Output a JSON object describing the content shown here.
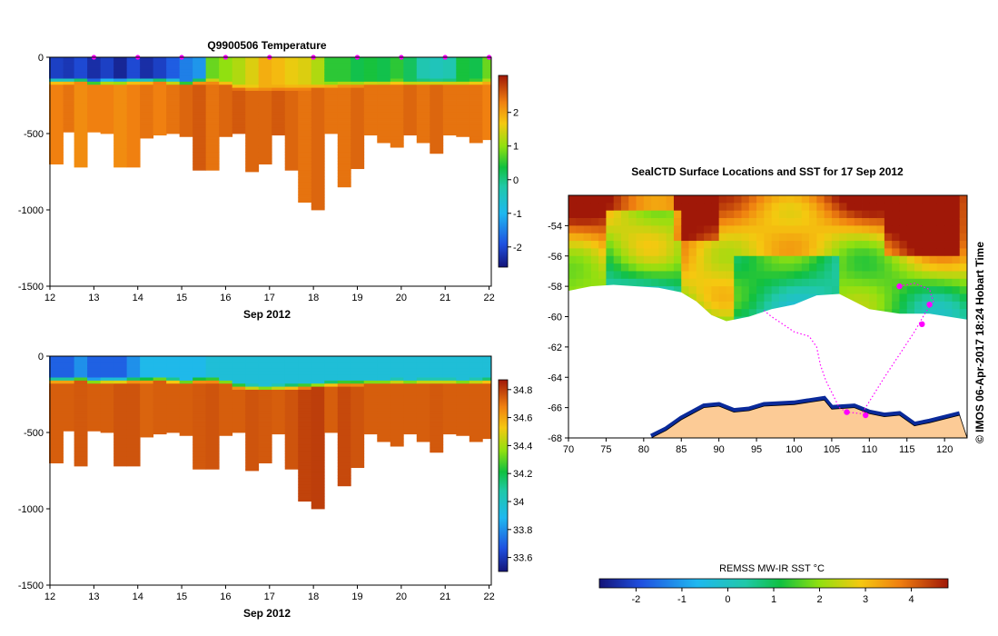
{
  "chart_data": [
    {
      "type": "heatmap",
      "title": "Q9900506  Temperature",
      "xlabel": "Sep 2012",
      "ylabel": "",
      "x_ticks": [
        "12",
        "13",
        "14",
        "15",
        "16",
        "17",
        "18",
        "19",
        "20",
        "21",
        "22"
      ],
      "xlim": [
        12,
        22.05
      ],
      "y_ticks": [
        0,
        -500,
        -1000,
        -1500
      ],
      "ylim": [
        -1500,
        0
      ],
      "colorbar_ticks": [
        2,
        1,
        0,
        -1,
        -2
      ],
      "colorbar_range": [
        -2.6,
        3.1
      ],
      "colors": {
        "cold": "#0a1a8a",
        "warm": "#e07010",
        "marker": "#ff00ff"
      },
      "profile_markers_x": [
        13,
        14,
        15,
        16,
        17,
        18,
        19,
        20,
        21,
        22
      ],
      "profiles_x": [
        12.2,
        12.4,
        12.7,
        13.0,
        13.3,
        13.6,
        13.9,
        14.2,
        14.5,
        14.8,
        15.1,
        15.4,
        15.7,
        16.0,
        16.3,
        16.6,
        16.9,
        17.2,
        17.5,
        17.8,
        18.1,
        18.4,
        18.7,
        19.0,
        19.3,
        19.6,
        19.9,
        20.2,
        20.5,
        20.8,
        21.1,
        21.4,
        21.7,
        22.0
      ],
      "max_depth_m": [
        700,
        490,
        720,
        490,
        500,
        720,
        720,
        530,
        510,
        500,
        520,
        740,
        740,
        520,
        500,
        750,
        700,
        510,
        740,
        950,
        1000,
        500,
        850,
        730,
        510,
        560,
        590,
        510,
        560,
        630,
        510,
        520,
        560,
        540
      ],
      "surface_temp_c": [
        -2.1,
        -2.2,
        -2.0,
        -2.3,
        -2.1,
        -2.4,
        -2.0,
        -2.3,
        -2.1,
        -1.8,
        -1.5,
        -1.3,
        0.8,
        1.0,
        1.2,
        1.5,
        1.9,
        1.8,
        1.6,
        1.5,
        1.2,
        0.5,
        0.5,
        0.3,
        0.4,
        0.3,
        0.5,
        0.2,
        -0.3,
        -0.4,
        -0.3,
        0.4,
        0.3,
        0.8
      ],
      "deep_temp_c": [
        2.3,
        2.4,
        2.2,
        2.3,
        2.3,
        2.2,
        2.3,
        2.4,
        2.3,
        2.4,
        2.5,
        2.6,
        2.4,
        2.5,
        2.6,
        2.5,
        2.5,
        2.6,
        2.5,
        2.4,
        2.5,
        2.4,
        2.4,
        2.5,
        2.4,
        2.4,
        2.4,
        2.5,
        2.4,
        2.5,
        2.4,
        2.4,
        2.4,
        2.3
      ],
      "mixed_layer_depth_m": [
        150,
        150,
        145,
        160,
        155,
        155,
        150,
        150,
        145,
        155,
        165,
        150,
        150,
        165,
        190,
        200,
        205,
        200,
        195,
        190,
        185,
        175,
        170,
        170,
        165,
        165,
        160,
        165,
        160,
        160,
        160,
        165,
        160,
        155
      ]
    },
    {
      "type": "heatmap",
      "title": "",
      "xlabel": "Sep 2012",
      "ylabel": "",
      "x_ticks": [
        "12",
        "13",
        "14",
        "15",
        "16",
        "17",
        "18",
        "19",
        "20",
        "21",
        "22"
      ],
      "xlim": [
        12,
        22.05
      ],
      "y_ticks": [
        0,
        -500,
        -1000,
        -1500
      ],
      "ylim": [
        -1500,
        0
      ],
      "colorbar_ticks": [
        "34.8",
        "34.6",
        "34.4",
        "34.2",
        "34",
        "33.8",
        "33.6"
      ],
      "colorbar_range": [
        33.5,
        34.87
      ],
      "surface_salinity": [
        33.7,
        33.7,
        33.8,
        33.7,
        33.7,
        33.7,
        33.8,
        33.9,
        33.9,
        33.9,
        33.9,
        33.9,
        33.95,
        33.95,
        33.95,
        33.95,
        33.95,
        33.95,
        33.95,
        33.95,
        33.95,
        33.95,
        33.95,
        33.95,
        33.95,
        33.95,
        33.95,
        33.95,
        33.95,
        33.95,
        33.95,
        33.95,
        33.95,
        33.95
      ],
      "deep_salinity": [
        34.74,
        34.74,
        34.75,
        34.74,
        34.74,
        34.76,
        34.76,
        34.73,
        34.74,
        34.74,
        34.74,
        34.75,
        34.76,
        34.74,
        34.74,
        34.76,
        34.75,
        34.74,
        34.76,
        34.79,
        34.8,
        34.74,
        34.78,
        34.76,
        34.74,
        34.74,
        34.74,
        34.74,
        34.74,
        34.75,
        34.74,
        34.74,
        34.74,
        34.74
      ]
    },
    {
      "type": "heatmap",
      "title": "SealCTD Surface Locations and SST for 17 Sep 2012",
      "xlabel": "",
      "ylabel": "",
      "x_ticks": [
        "70",
        "75",
        "80",
        "85",
        "90",
        "95",
        "100",
        "105",
        "110",
        "115",
        "120"
      ],
      "xlim": [
        70,
        123
      ],
      "y_ticks": [
        "-54",
        "-56",
        "-58",
        "-60",
        "-62",
        "-64",
        "-66",
        "-68"
      ],
      "ylim": [
        -68,
        -52
      ],
      "colorbar_label": "REMSS MW-IR SST °C",
      "colorbar_ticks": [
        "-2",
        "-1",
        "0",
        "1",
        "2",
        "3",
        "4"
      ],
      "colorbar_range": [
        -2.8,
        4.8
      ],
      "ice_edge_lat": [
        -58.3,
        -58.0,
        -57.9,
        -58.0,
        -58.1,
        -58.4,
        -59.0,
        -59.9,
        -60.3,
        -60.0,
        -59.5,
        -59.2,
        -58.6,
        -58.5,
        -59.5,
        -59.8,
        -59.8,
        -60.2
      ],
      "ice_edge_lon": [
        70,
        73,
        76,
        79,
        82,
        85,
        87,
        89,
        91,
        94,
        97,
        100,
        103,
        106,
        110,
        114,
        118,
        123
      ],
      "land_lat": [
        -68,
        -68,
        -67.5,
        -66.8,
        -66.0,
        -65.9,
        -66.3,
        -66.2,
        -65.9,
        -65.8,
        -65.5,
        -66.1,
        -66.0,
        -66.4,
        -66.6,
        -66.5,
        -67.2,
        -67.0,
        -66.5,
        -68
      ],
      "land_lon": [
        80,
        81,
        83,
        85,
        88,
        90,
        92,
        94,
        96,
        100,
        104,
        105,
        108,
        110,
        112,
        114,
        116,
        118,
        122,
        123
      ],
      "track_lon": [
        114,
        116,
        118,
        118.5,
        117.5,
        116,
        112,
        109,
        107,
        106,
        105,
        104.2,
        103.5,
        103,
        102,
        100,
        98.5,
        97,
        96
      ],
      "track_lat": [
        -58.0,
        -57.8,
        -58.2,
        -59.0,
        -59.7,
        -61.0,
        -64.0,
        -66.4,
        -66.3,
        -66.0,
        -65.0,
        -64.2,
        -63.2,
        -62.0,
        -61.3,
        -61.0,
        -60.5,
        -60.0,
        -59.6
      ],
      "position_lon": [
        114,
        107,
        109.5,
        118,
        117
      ],
      "position_lat": [
        -58.0,
        -66.3,
        -66.5,
        -59.2,
        -60.5
      ],
      "credit": "© IMOS 06-Apr-2017 18:24 Hobart Time"
    }
  ]
}
